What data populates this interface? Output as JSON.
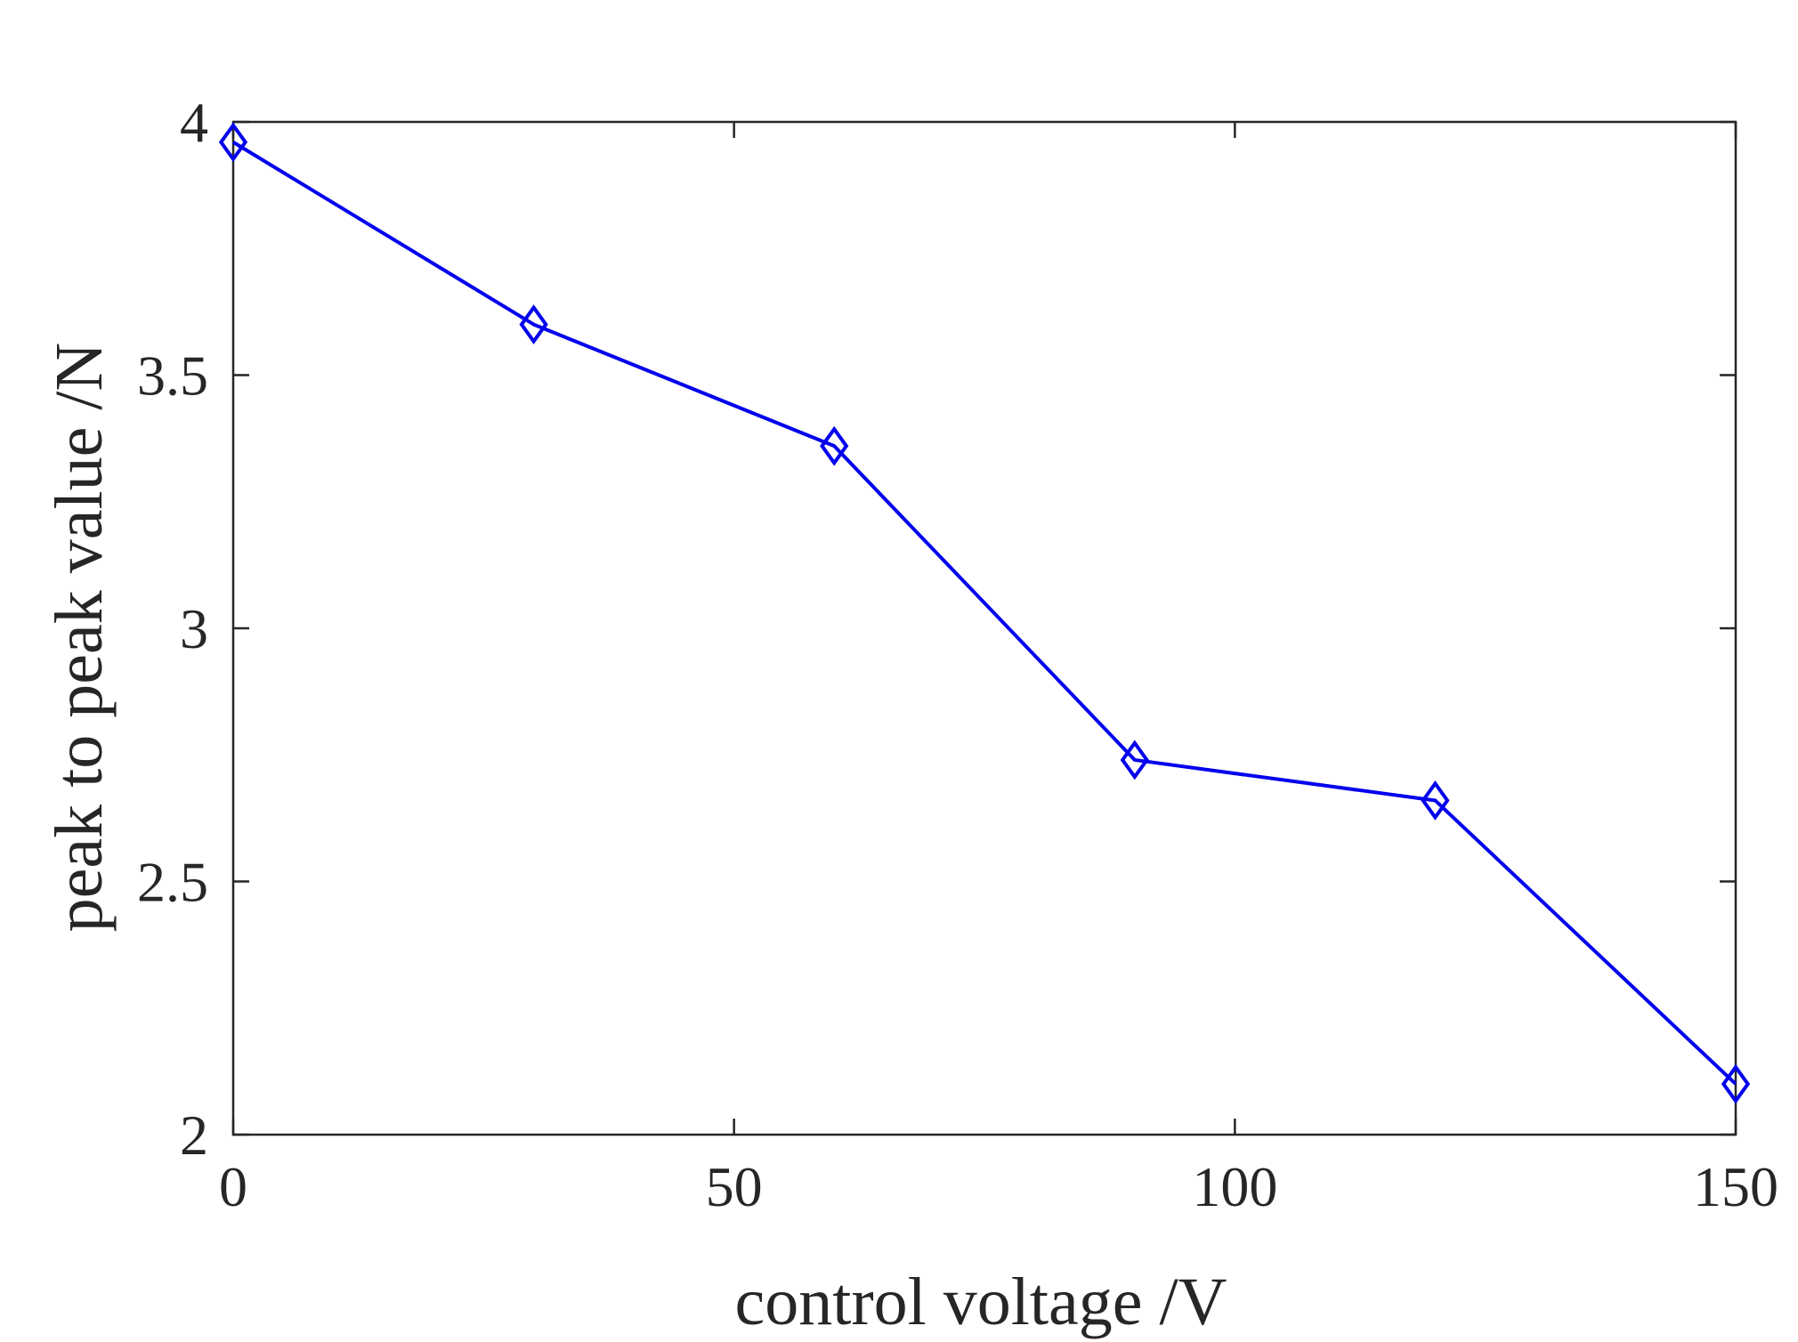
{
  "colors": {
    "series": "#0000ee",
    "axis": "#262626",
    "background": "#ffffff"
  },
  "chart_data": {
    "type": "line",
    "title": "",
    "xlabel": "control voltage /V",
    "ylabel": "peak to peak value /N",
    "xlim": [
      0,
      150
    ],
    "ylim": [
      2,
      4
    ],
    "x_ticks": [
      0,
      50,
      100,
      150
    ],
    "y_ticks": [
      2,
      2.5,
      3,
      3.5,
      4
    ],
    "x_tick_labels": [
      "0",
      "50",
      "100",
      "150"
    ],
    "y_tick_labels": [
      "2",
      "2.5",
      "3",
      "3.5",
      "4"
    ],
    "grid": false,
    "legend": "none",
    "series": [
      {
        "marker": "diamond",
        "x": [
          0,
          30,
          60,
          90,
          120,
          150
        ],
        "y": [
          3.96,
          3.6,
          3.36,
          2.74,
          2.66,
          2.1
        ]
      }
    ]
  }
}
